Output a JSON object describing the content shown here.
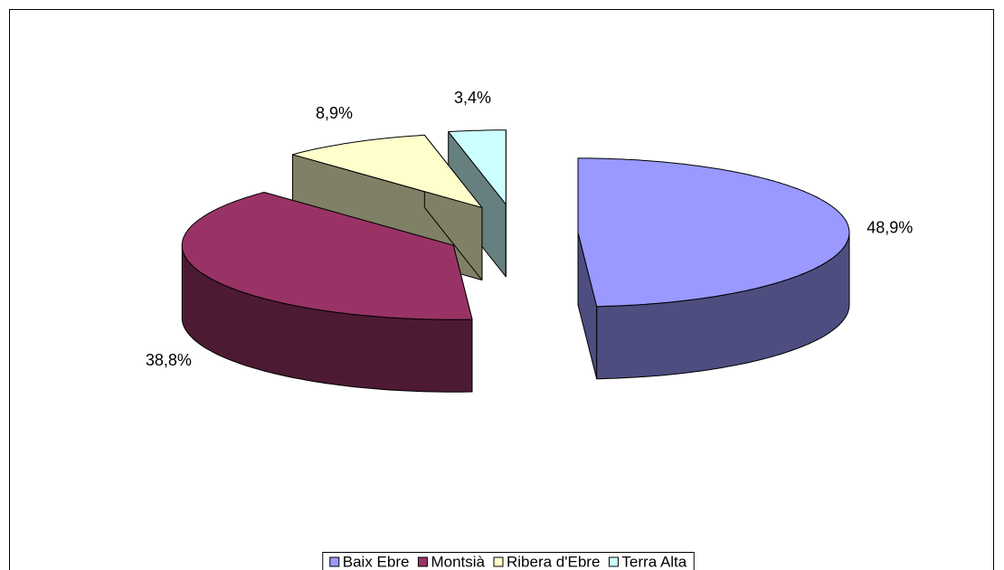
{
  "chart_data": {
    "type": "pie",
    "categories": [
      "Baix Ebre",
      "Montsià",
      "Ribera d'Ebre",
      "Terra Alta"
    ],
    "values": [
      48.9,
      38.8,
      8.9,
      3.4
    ],
    "value_labels": [
      "48,9%",
      "38,8%",
      "8,9%",
      "3,4%"
    ],
    "colors": [
      "#9999ff",
      "#993366",
      "#ffffcc",
      "#ccffff"
    ],
    "legend": "bottom"
  }
}
